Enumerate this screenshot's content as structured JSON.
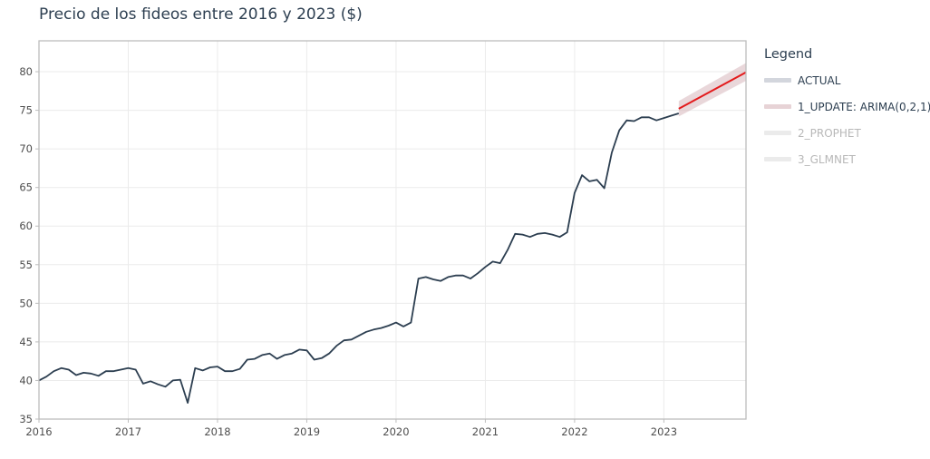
{
  "chart_data": {
    "type": "line",
    "title": "Precio de los fideos entre 2016 y 2023 ($)",
    "xlabel": "",
    "ylabel": "",
    "xlim": [
      2016.0,
      2023.92
    ],
    "ylim": [
      35,
      84
    ],
    "x_ticks": [
      "2016",
      "2017",
      "2018",
      "2019",
      "2020",
      "2021",
      "2022",
      "2023"
    ],
    "y_ticks": [
      35,
      40,
      45,
      50,
      55,
      60,
      65,
      70,
      75,
      80
    ],
    "grid": true,
    "legend": {
      "title": "Legend",
      "position": "right"
    },
    "series": [
      {
        "name": "ACTUAL",
        "color": "#2c3e50",
        "points": [
          [
            "2016-01",
            40.0
          ],
          [
            "2016-02",
            40.5
          ],
          [
            "2016-03",
            41.2
          ],
          [
            "2016-04",
            41.6
          ],
          [
            "2016-05",
            41.4
          ],
          [
            "2016-06",
            40.7
          ],
          [
            "2016-07",
            41.0
          ],
          [
            "2016-08",
            40.9
          ],
          [
            "2016-09",
            40.6
          ],
          [
            "2016-10",
            41.2
          ],
          [
            "2016-11",
            41.2
          ],
          [
            "2016-12",
            41.4
          ],
          [
            "2017-01",
            41.6
          ],
          [
            "2017-02",
            41.4
          ],
          [
            "2017-03",
            39.6
          ],
          [
            "2017-04",
            39.9
          ],
          [
            "2017-05",
            39.5
          ],
          [
            "2017-06",
            39.2
          ],
          [
            "2017-07",
            40.0
          ],
          [
            "2017-08",
            40.1
          ],
          [
            "2017-09",
            37.1
          ],
          [
            "2017-10",
            41.6
          ],
          [
            "2017-11",
            41.3
          ],
          [
            "2017-12",
            41.7
          ],
          [
            "2018-01",
            41.8
          ],
          [
            "2018-02",
            41.2
          ],
          [
            "2018-03",
            41.2
          ],
          [
            "2018-04",
            41.5
          ],
          [
            "2018-05",
            42.7
          ],
          [
            "2018-06",
            42.8
          ],
          [
            "2018-07",
            43.3
          ],
          [
            "2018-08",
            43.5
          ],
          [
            "2018-09",
            42.8
          ],
          [
            "2018-10",
            43.3
          ],
          [
            "2018-11",
            43.5
          ],
          [
            "2018-12",
            44.0
          ],
          [
            "2019-01",
            43.9
          ],
          [
            "2019-02",
            42.7
          ],
          [
            "2019-03",
            42.9
          ],
          [
            "2019-04",
            43.5
          ],
          [
            "2019-05",
            44.5
          ],
          [
            "2019-06",
            45.2
          ],
          [
            "2019-07",
            45.3
          ],
          [
            "2019-08",
            45.8
          ],
          [
            "2019-09",
            46.3
          ],
          [
            "2019-10",
            46.6
          ],
          [
            "2019-11",
            46.8
          ],
          [
            "2019-12",
            47.1
          ],
          [
            "2020-01",
            47.5
          ],
          [
            "2020-02",
            47.0
          ],
          [
            "2020-03",
            47.5
          ],
          [
            "2020-04",
            53.2
          ],
          [
            "2020-05",
            53.4
          ],
          [
            "2020-06",
            53.1
          ],
          [
            "2020-07",
            52.9
          ],
          [
            "2020-08",
            53.4
          ],
          [
            "2020-09",
            53.6
          ],
          [
            "2020-10",
            53.6
          ],
          [
            "2020-11",
            53.2
          ],
          [
            "2020-12",
            53.9
          ],
          [
            "2021-01",
            54.7
          ],
          [
            "2021-02",
            55.4
          ],
          [
            "2021-03",
            55.2
          ],
          [
            "2021-04",
            56.9
          ],
          [
            "2021-05",
            59.0
          ],
          [
            "2021-06",
            58.9
          ],
          [
            "2021-07",
            58.6
          ],
          [
            "2021-08",
            59.0
          ],
          [
            "2021-09",
            59.1
          ],
          [
            "2021-10",
            58.9
          ],
          [
            "2021-11",
            58.6
          ],
          [
            "2021-12",
            59.2
          ],
          [
            "2022-01",
            64.3
          ],
          [
            "2022-02",
            66.6
          ],
          [
            "2022-03",
            65.8
          ],
          [
            "2022-04",
            66.0
          ],
          [
            "2022-05",
            64.9
          ],
          [
            "2022-06",
            69.5
          ],
          [
            "2022-07",
            72.4
          ],
          [
            "2022-08",
            73.7
          ],
          [
            "2022-09",
            73.6
          ],
          [
            "2022-10",
            74.1
          ],
          [
            "2022-11",
            74.1
          ],
          [
            "2022-12",
            73.7
          ],
          [
            "2023-01",
            74.0
          ],
          [
            "2023-02",
            74.3
          ],
          [
            "2023-03",
            74.6
          ]
        ]
      },
      {
        "name": "1_UPDATE: ARIMA(0,2,1)",
        "color": "#e31a1c",
        "band_color": "#cfa6ae",
        "points": [
          [
            "2023-03",
            75.2
          ],
          [
            "2023-12",
            79.9
          ]
        ],
        "lower": [
          [
            "2023-03",
            74.2
          ],
          [
            "2023-12",
            78.8
          ]
        ],
        "upper": [
          [
            "2023-03",
            76.2
          ],
          [
            "2023-12",
            81.1
          ]
        ]
      },
      {
        "name": "2_PROPHET",
        "color": "#d9d9d9",
        "points": []
      },
      {
        "name": "3_GLMNET",
        "color": "#d9d9d9",
        "points": []
      }
    ]
  },
  "legend_swatches": [
    "#d3d6dd",
    "#e7d3d6",
    "#ebebeb",
    "#ebebeb"
  ],
  "legend_text_colors": [
    "#2c3e50",
    "#2c3e50",
    "#b8b8b8",
    "#b8b8b8"
  ]
}
